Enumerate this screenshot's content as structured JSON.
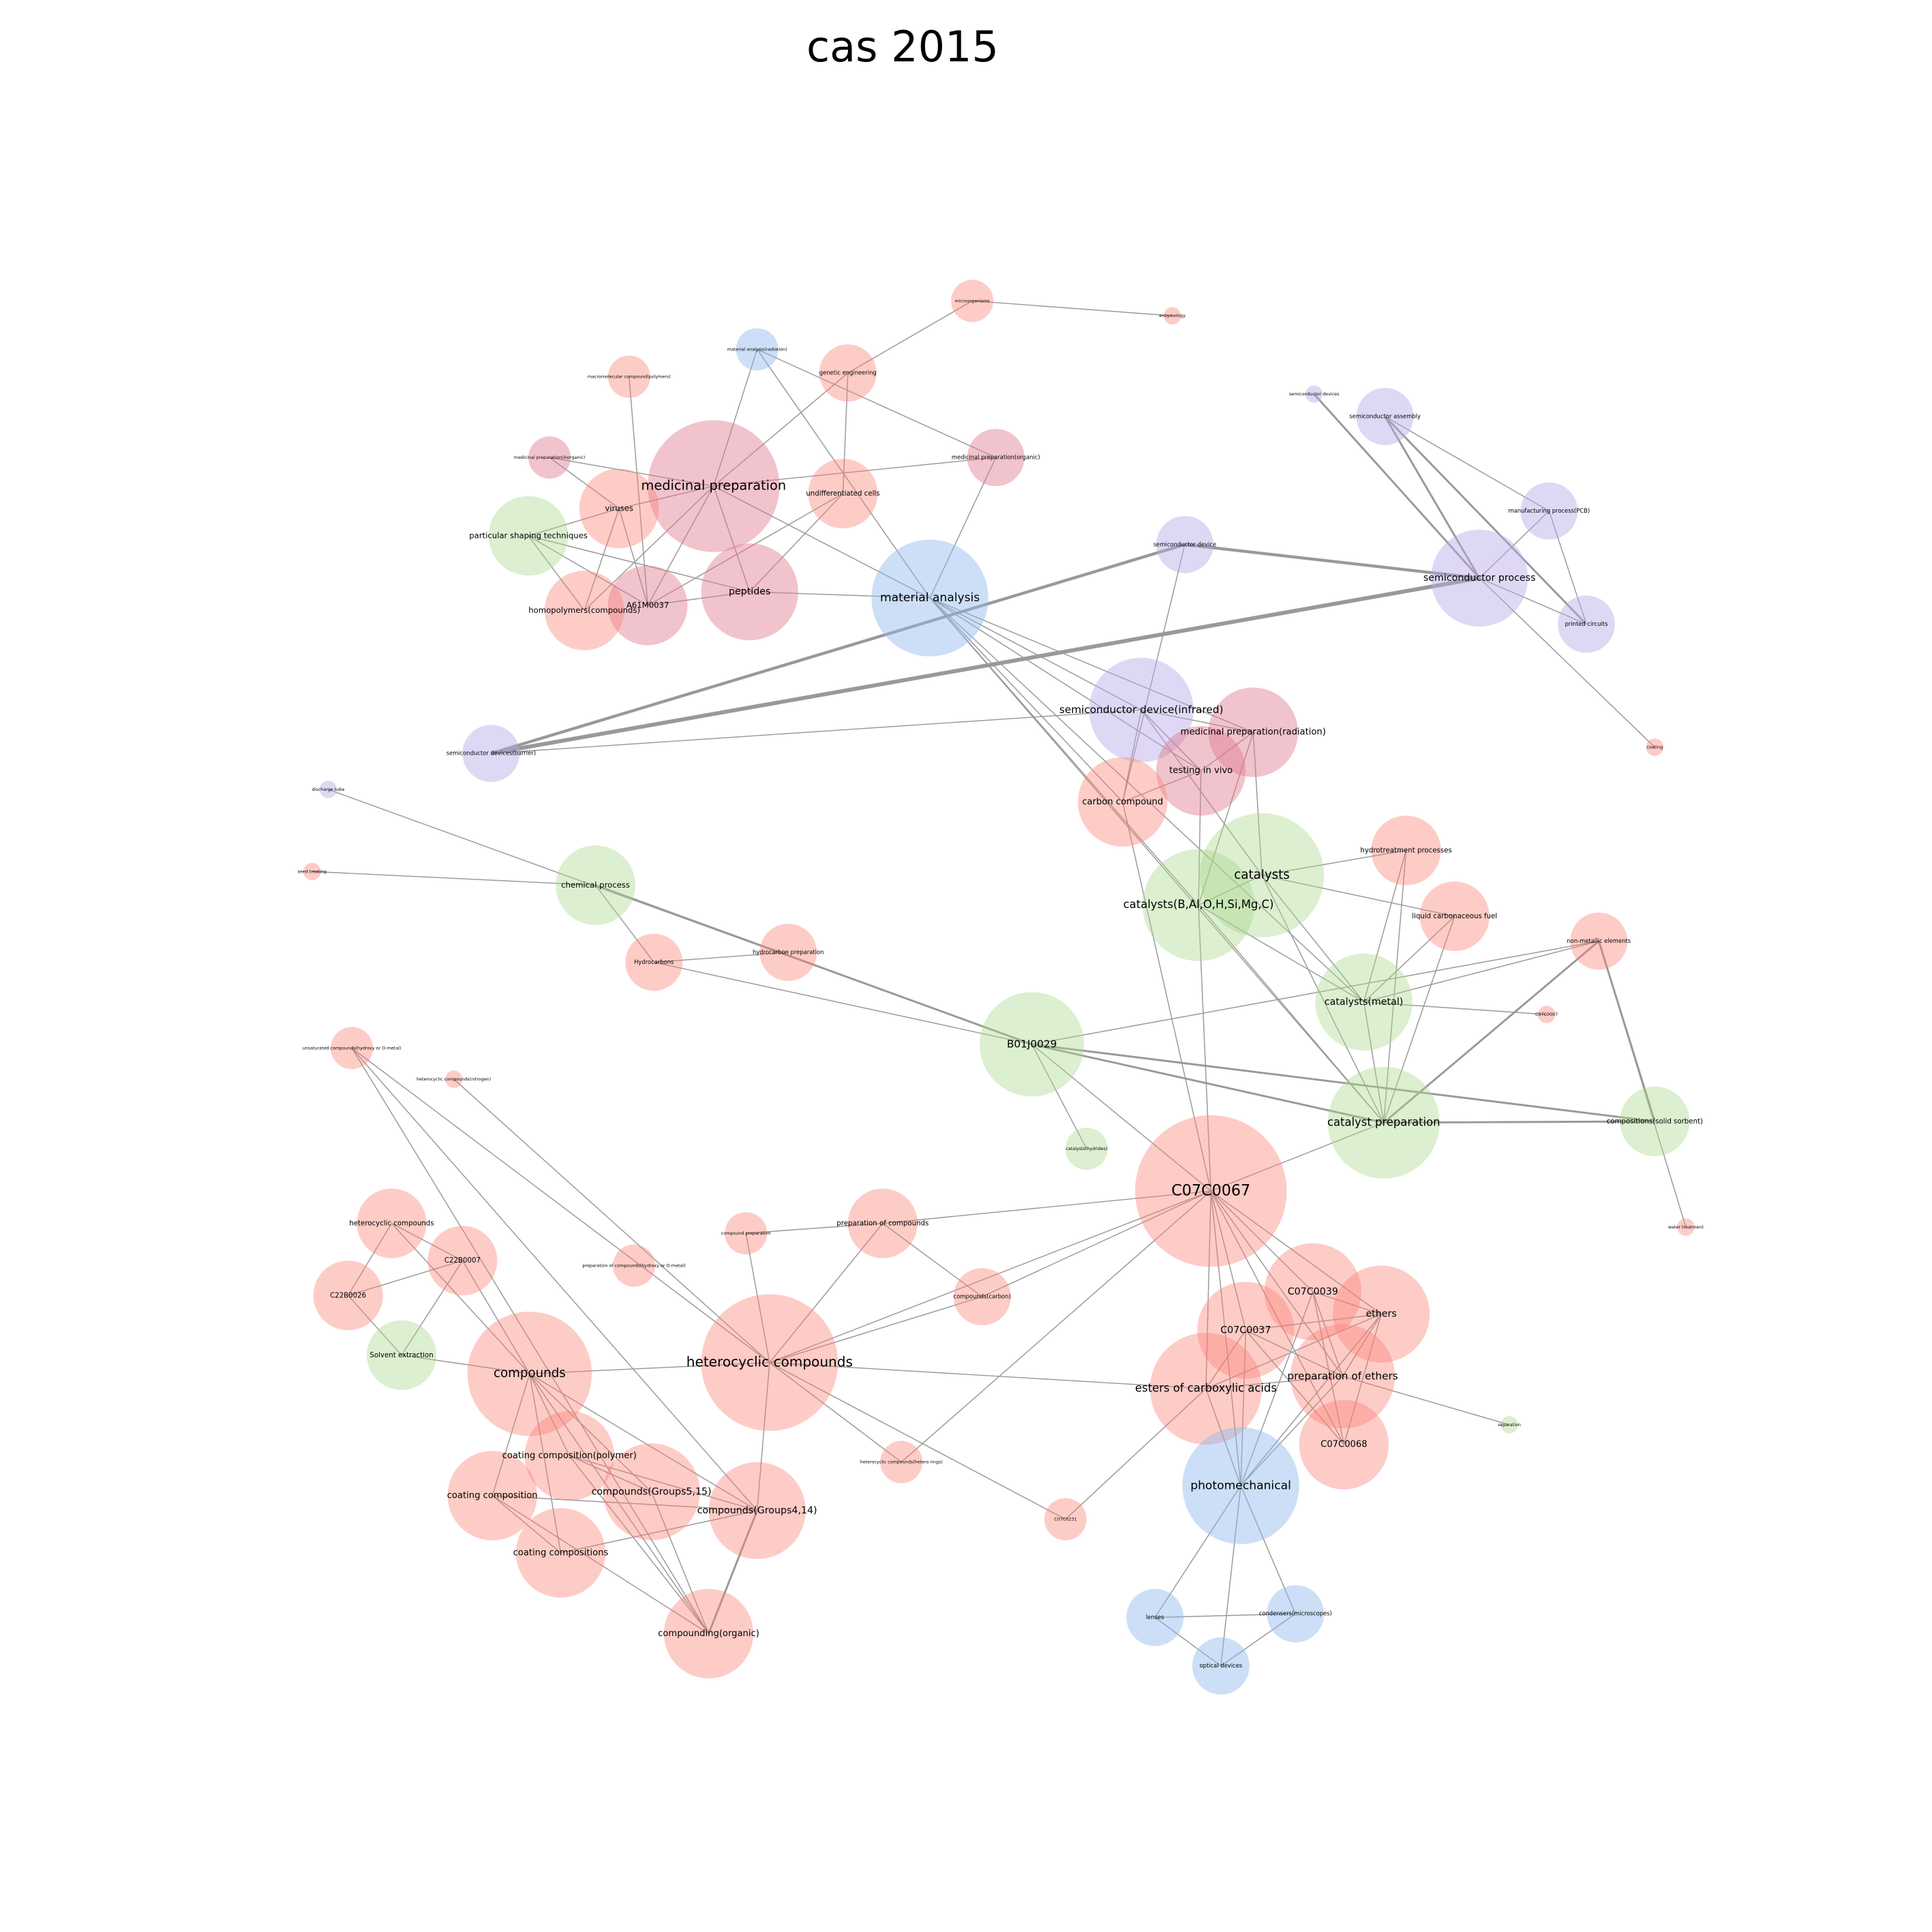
{
  "title": "cas 2015",
  "nodes": [
    {
      "label": "microorganisms"
    },
    {
      "label": "enzymology"
    },
    {
      "label": "material analysis(radiation)"
    },
    {
      "label": "genetic engineering"
    },
    {
      "label": "macromolecular compound(polymers)"
    },
    {
      "label": "medicinal preparation(inorganic)"
    },
    {
      "label": "medicinal preparation(organic)"
    },
    {
      "label": "medicinal preparation"
    },
    {
      "label": "viruses"
    },
    {
      "label": "undifferentiated cells"
    },
    {
      "label": "particular shaping techniques"
    },
    {
      "label": "peptides"
    },
    {
      "label": "A61M0037"
    },
    {
      "label": "homopolymers(compounds)"
    },
    {
      "label": "material analysis"
    },
    {
      "label": "semiconductor devices"
    },
    {
      "label": "semiconductor assembly"
    },
    {
      "label": "manufacturing process(PCB)"
    },
    {
      "label": "semiconductor device"
    },
    {
      "label": "semiconductor process"
    },
    {
      "label": "printed circuits"
    },
    {
      "label": "coating"
    },
    {
      "label": "semiconductor device(infrared)"
    },
    {
      "label": "medicinal preparation(radiation)"
    },
    {
      "label": "semiconductor devices(barrier)"
    },
    {
      "label": "testing in vivo"
    },
    {
      "label": "carbon compound"
    },
    {
      "label": "discharge tube"
    },
    {
      "label": "catalysts"
    },
    {
      "label": "catalysts(B,Al,O,H,Si,Mg,C)"
    },
    {
      "label": "hydrotreatment processes"
    },
    {
      "label": "seed treating"
    },
    {
      "label": "chemical process"
    },
    {
      "label": "liquid carbonaceous fuel"
    },
    {
      "label": "hydrocarbon preparation"
    },
    {
      "label": "Hydrocarbons"
    },
    {
      "label": "non-metallic elements"
    },
    {
      "label": "catalysts(metal)"
    },
    {
      "label": "C07C0007"
    },
    {
      "label": "B01J0029"
    },
    {
      "label": "unsaturated compounds(hydroxy or O-metal)"
    },
    {
      "label": "heterocyclic compounds(nitrogen)"
    },
    {
      "label": "catalyst preparation"
    },
    {
      "label": "compositions(solid sorbent)"
    },
    {
      "label": "catalysts(hydrides)"
    },
    {
      "label": "C07C0067"
    },
    {
      "label": "water treatment"
    },
    {
      "label": "heterocyclic compounds"
    },
    {
      "label": "C22B0007"
    },
    {
      "label": "compound preparation"
    },
    {
      "label": "preparation of compounds"
    },
    {
      "label": "preparation of compounds(hydroxy or O-metal)"
    },
    {
      "label": "C22B0026"
    },
    {
      "label": "compounds(carbon)"
    },
    {
      "label": "C07C0039"
    },
    {
      "label": "ethers"
    },
    {
      "label": "C07C0037"
    },
    {
      "label": "Solvent extraction"
    },
    {
      "label": "compounds"
    },
    {
      "label": "heterocyclic compounds"
    },
    {
      "label": "preparation of ethers"
    },
    {
      "label": "esters of carboxylic acids"
    },
    {
      "label": "separation"
    },
    {
      "label": "C07C0068"
    },
    {
      "label": "coating composition(polymer)"
    },
    {
      "label": "heterocyclic compounds(hetero rings)"
    },
    {
      "label": "photomechanical"
    },
    {
      "label": "compounds(Groups5,15)"
    },
    {
      "label": "coating composition"
    },
    {
      "label": "compounds(Groups4,14)"
    },
    {
      "label": "C07C0231"
    },
    {
      "label": "coating compositions"
    },
    {
      "label": "compounding(organic)"
    },
    {
      "label": "lenses"
    },
    {
      "label": "condensers(microscopes)"
    },
    {
      "label": "optical devices"
    }
  ]
}
